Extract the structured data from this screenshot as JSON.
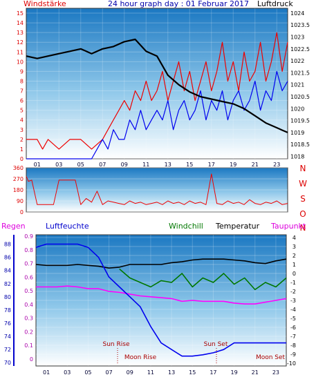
{
  "chart_data": [
    {
      "id": "wind-pressure",
      "type": "line",
      "title": "24 hour graph day : 01 Februar 2017",
      "left_label": "Windstärke",
      "right_label": "Luftdruck",
      "x_ticks": [
        "01",
        "03",
        "05",
        "07",
        "09",
        "11",
        "13",
        "15",
        "17",
        "19",
        "21",
        "23"
      ],
      "y_left_ticks": [
        "0",
        "1",
        "2",
        "3",
        "4",
        "5",
        "6",
        "7",
        "8",
        "9",
        "10",
        "11",
        "12",
        "13",
        "14",
        "15"
      ],
      "y_right_ticks": [
        "1018",
        "1018.5",
        "1019",
        "1019.5",
        "1020",
        "1020.5",
        "1021",
        "1021.5",
        "1022",
        "1022.5",
        "1023",
        "1023.5",
        "1024"
      ],
      "ylim_left": [
        0,
        15.5
      ],
      "ylim_right": [
        1017.9,
        1024.2
      ],
      "series": [
        {
          "color": "#ee0000",
          "axis": "left",
          "x": [
            0,
            1,
            1.5,
            2,
            3,
            4,
            5,
            6,
            7,
            7.5,
            8,
            8.5,
            9,
            9.5,
            10,
            10.5,
            11,
            11.5,
            12,
            12.5,
            13,
            13.5,
            14,
            14.5,
            15,
            15.5,
            16,
            16.5,
            17,
            17.5,
            18,
            18.5,
            19,
            19.5,
            20,
            20.5,
            21,
            21.5,
            22,
            22.5,
            23,
            23.5,
            24
          ],
          "y": [
            2,
            2,
            1,
            2,
            1,
            2,
            2,
            1,
            2,
            3,
            4,
            5,
            6,
            5,
            7,
            6,
            8,
            6,
            7,
            9,
            6,
            8,
            10,
            7,
            9,
            6,
            8,
            10,
            7,
            9,
            12,
            8,
            10,
            7,
            11,
            8,
            9,
            12,
            8,
            10,
            13,
            9,
            12
          ]
        },
        {
          "color": "#0000ee",
          "axis": "left",
          "x": [
            0,
            6,
            6.5,
            7,
            7.5,
            8,
            8.5,
            9,
            9.5,
            10,
            10.5,
            11,
            11.5,
            12,
            12.5,
            13,
            13.5,
            14,
            14.5,
            15,
            15.5,
            16,
            16.5,
            17,
            17.5,
            18,
            18.5,
            19,
            19.5,
            20,
            20.5,
            21,
            21.5,
            22,
            22.5,
            23,
            23.5,
            24
          ],
          "y": [
            0,
            0,
            1,
            2,
            1,
            3,
            2,
            2,
            4,
            3,
            5,
            3,
            4,
            5,
            4,
            6,
            3,
            5,
            6,
            4,
            5,
            7,
            4,
            6,
            5,
            7,
            4,
            6,
            7,
            5,
            6,
            8,
            5,
            7,
            6,
            9,
            7,
            8
          ]
        },
        {
          "color": "#000000",
          "axis": "right",
          "x": [
            0,
            1,
            2,
            3,
            4,
            5,
            6,
            7,
            8,
            9,
            10,
            11,
            12,
            13,
            14,
            15,
            16,
            17,
            18,
            19,
            20,
            21,
            22,
            23,
            23.5,
            24
          ],
          "y": [
            1022.2,
            1022.1,
            1022.2,
            1022.3,
            1022.4,
            1022.5,
            1022.3,
            1022.5,
            1022.6,
            1022.8,
            1022.9,
            1022.4,
            1022.2,
            1021.4,
            1021,
            1020.7,
            1020.5,
            1020.4,
            1020.3,
            1020.2,
            1020,
            1019.7,
            1019.4,
            1019.2,
            1019.1,
            1019
          ]
        }
      ]
    },
    {
      "id": "wind-direction",
      "type": "line",
      "y_left_ticks": [
        "0",
        "90",
        "180",
        "270",
        "360"
      ],
      "right_letters": [
        "N",
        "W",
        "S",
        "O",
        "N"
      ],
      "ylim": [
        0,
        360
      ],
      "series": [
        {
          "color": "#ee0000",
          "x": [
            0,
            0.2,
            0.5,
            1,
            1.5,
            2,
            2.5,
            3,
            3.5,
            4,
            4.5,
            5,
            5.5,
            6,
            6.5,
            7,
            7.5,
            8,
            8.5,
            9,
            9.5,
            10,
            10.5,
            11,
            11.5,
            12,
            12.5,
            13,
            13.5,
            14,
            14.5,
            15,
            15.5,
            16,
            16.5,
            17,
            17.5,
            18,
            18.5,
            19,
            19.5,
            20,
            20.5,
            21,
            21.5,
            22,
            22.5,
            23,
            23.5,
            24
          ],
          "y": [
            290,
            250,
            260,
            60,
            60,
            60,
            60,
            260,
            260,
            260,
            260,
            60,
            110,
            80,
            170,
            60,
            90,
            80,
            70,
            60,
            90,
            70,
            80,
            60,
            70,
            80,
            60,
            90,
            70,
            80,
            60,
            90,
            70,
            80,
            60,
            310,
            70,
            60,
            90,
            70,
            80,
            60,
            100,
            70,
            60,
            80,
            70,
            90,
            60,
            70
          ]
        }
      ]
    },
    {
      "id": "temperature-humidity",
      "type": "line",
      "labels": [
        "Regen",
        "Luftfeuchte",
        "Windchill",
        "Temperatur",
        "Taupunkt"
      ],
      "regen_ticks": [
        "0",
        "0.1",
        "0.2",
        "0.3",
        "0.4",
        "0.5",
        "0.6",
        "0.7",
        "0.8",
        "0.9"
      ],
      "humidity_ticks": [
        "70",
        "72",
        "74",
        "76",
        "78",
        "80",
        "82",
        "84",
        "86",
        "88"
      ],
      "temp_ticks": [
        "4",
        "3",
        "2",
        "1",
        "0",
        "-1",
        "-2",
        "-3",
        "-4",
        "-5",
        "-6",
        "-7",
        "-8",
        "-9",
        "-10"
      ],
      "ylim_temp": [
        -10,
        4
      ],
      "ylim_humidity": [
        69.5,
        89
      ],
      "annotations": [
        "Sun Rise",
        "Moon Rise",
        "Sun Set",
        "Moon Set"
      ],
      "series": [
        {
          "color": "#000000",
          "x": [
            0,
            1,
            2,
            3,
            4,
            5,
            6,
            7,
            8,
            9,
            10,
            11,
            12,
            13,
            14,
            15,
            16,
            17,
            18,
            19,
            20,
            21,
            22,
            23,
            24
          ],
          "y": [
            1,
            0.9,
            0.9,
            0.9,
            1,
            0.9,
            0.8,
            0.6,
            0.7,
            1,
            1,
            1,
            1,
            1.2,
            1.3,
            1.5,
            1.6,
            1.6,
            1.6,
            1.5,
            1.4,
            1.2,
            1.1,
            1.4,
            1.6
          ]
        },
        {
          "color": "#007700",
          "x": [
            8,
            9,
            10,
            11,
            12,
            13,
            14,
            15,
            16,
            17,
            18,
            19,
            20,
            21,
            22,
            23,
            24
          ],
          "y": [
            0.5,
            -0.5,
            -1,
            -1.5,
            -0.8,
            -1,
            0,
            -1.5,
            -0.5,
            -1,
            0,
            -1.2,
            -0.5,
            -1.8,
            -1,
            -1.5,
            -0.5
          ]
        },
        {
          "color": "#ff00ff",
          "x": [
            0,
            1,
            2,
            3,
            4,
            5,
            6,
            7,
            8,
            9,
            10,
            11,
            12,
            13,
            14,
            15,
            16,
            17,
            18,
            19,
            20,
            21,
            22,
            23,
            24
          ],
          "y": [
            -1.5,
            -1.5,
            -1.5,
            -1.4,
            -1.5,
            -1.7,
            -1.7,
            -2,
            -2.1,
            -2.3,
            -2.5,
            -2.6,
            -2.7,
            -2.8,
            -3.1,
            -3,
            -3.1,
            -3.1,
            -3.1,
            -3.3,
            -3.4,
            -3.4,
            -3.2,
            -3,
            -2.8
          ]
        },
        {
          "color": "#0000ee",
          "axis": "humidity",
          "x": [
            0,
            1,
            2,
            3,
            4,
            5,
            6,
            7,
            8,
            9,
            10,
            11,
            12,
            13,
            14,
            15,
            16,
            17,
            18,
            19,
            20,
            21,
            22,
            23,
            24
          ],
          "y": [
            87.5,
            88,
            88,
            88,
            88,
            87.5,
            86,
            83,
            81.5,
            80,
            78.5,
            75.5,
            73,
            72,
            71,
            71,
            71.2,
            71.5,
            72,
            73,
            73,
            73,
            73,
            73,
            73
          ]
        }
      ]
    }
  ]
}
